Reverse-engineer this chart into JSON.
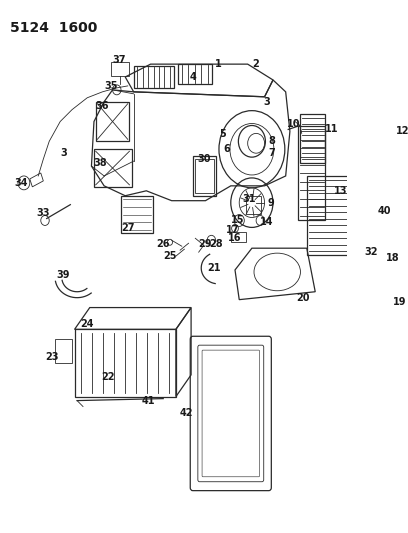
{
  "title": "5124 1600",
  "bg_color": "#ffffff",
  "line_color": "#2a2a2a",
  "label_color": "#1a1a1a",
  "title_fontsize": 10,
  "label_fontsize": 7,
  "figsize": [
    4.08,
    5.33
  ],
  "dpi": 100
}
